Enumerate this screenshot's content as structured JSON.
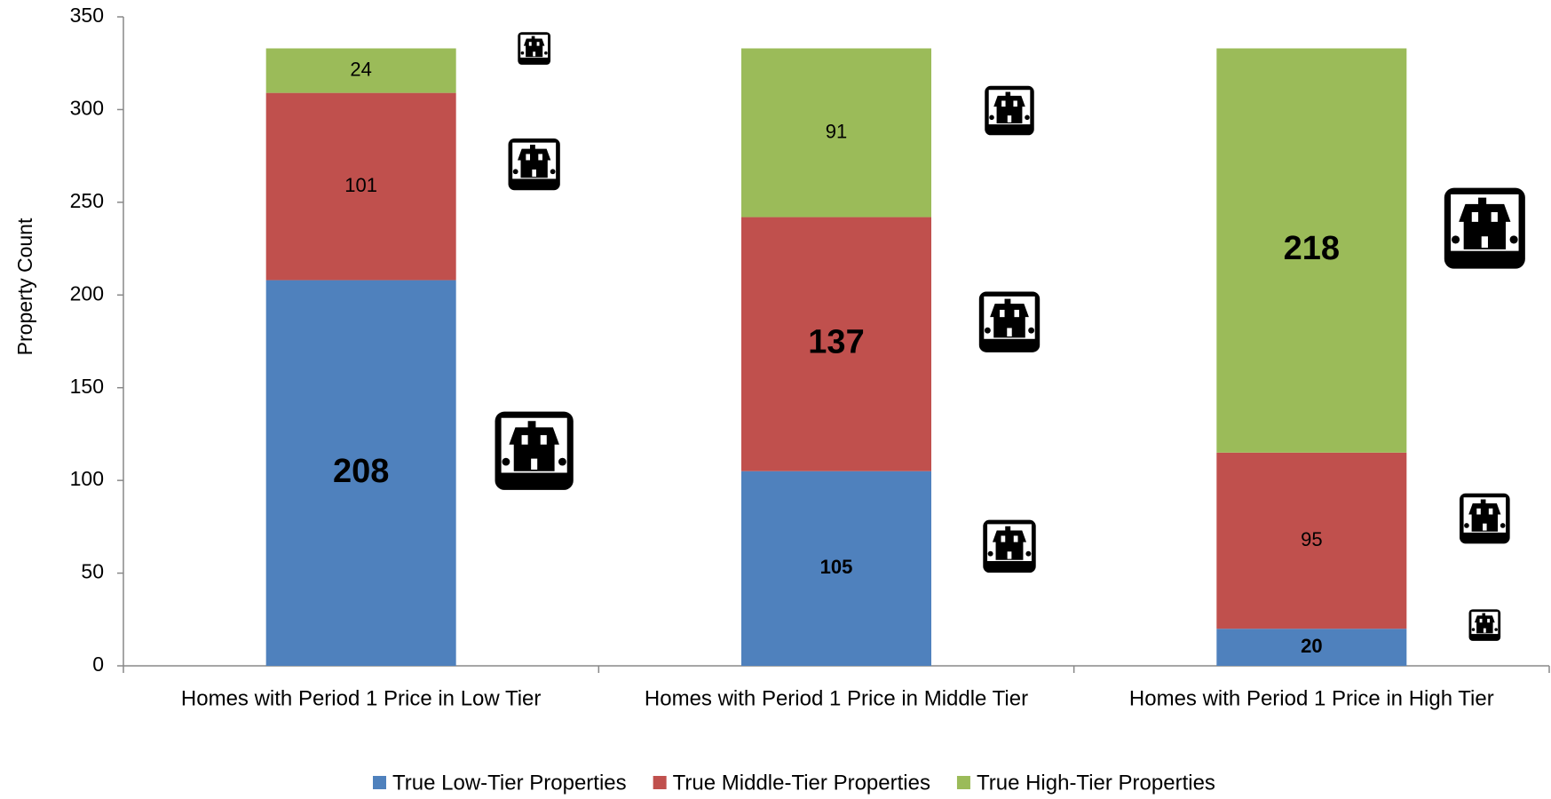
{
  "chart_data": {
    "type": "stacked_bar",
    "y_label": "Property Count",
    "categories": [
      "Homes with Period 1 Price in Low Tier",
      "Homes with Period 1 Price in Middle Tier",
      "Homes with Period 1 Price in High Tier"
    ],
    "series": [
      {
        "name": "True Low-Tier Properties",
        "color": "#4f81bd",
        "values": [
          208,
          105,
          20
        ]
      },
      {
        "name": "True Middle-Tier Properties",
        "color": "#c0504d",
        "values": [
          101,
          137,
          95
        ]
      },
      {
        "name": "True High-Tier Properties",
        "color": "#9bbb59",
        "values": [
          24,
          91,
          218
        ]
      }
    ],
    "ylim": [
      0,
      350
    ],
    "yticks": [
      0,
      50,
      100,
      150,
      200,
      250,
      300,
      350
    ],
    "legend": "bottom"
  }
}
